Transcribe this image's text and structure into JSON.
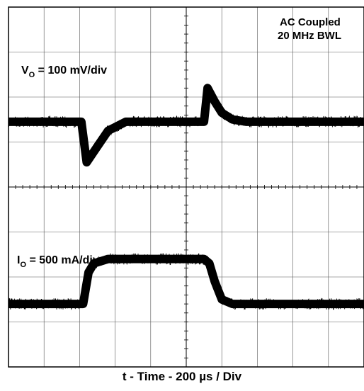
{
  "chart_data": {
    "type": "line",
    "title": "",
    "xlabel": "t - Time - 200 µs / Div",
    "x_unit": "µs",
    "x_per_div": 200,
    "x_divisions": 10,
    "xlim": [
      0,
      2000
    ],
    "grid": true,
    "annotations": [
      {
        "id": "coupling_line1",
        "text": "AC Coupled"
      },
      {
        "id": "coupling_line2",
        "text": "20 MHz BWL"
      }
    ],
    "series": [
      {
        "name_parts": {
          "symbol": "V",
          "subscript": "O",
          "rest": " = 100 mV/div"
        },
        "channel": "top",
        "unit": "mV",
        "per_div": 100,
        "x": [
          0,
          410,
          440,
          500,
          560,
          660,
          1100,
          1120,
          1160,
          1200,
          1260,
          1340,
          1400,
          2000
        ],
        "y": [
          0,
          0,
          -90,
          -55,
          -20,
          0,
          0,
          75,
          45,
          20,
          5,
          0,
          0,
          0
        ]
      },
      {
        "name_parts": {
          "symbol": "I",
          "subscript": "O",
          "rest": " = 500 mA/div"
        },
        "channel": "bottom",
        "unit": "mA",
        "per_div": 500,
        "x": [
          0,
          420,
          450,
          480,
          560,
          1100,
          1130,
          1160,
          1200,
          1260,
          2000
        ],
        "y": [
          0,
          0,
          350,
          450,
          500,
          500,
          450,
          250,
          50,
          0,
          0
        ]
      }
    ]
  }
}
